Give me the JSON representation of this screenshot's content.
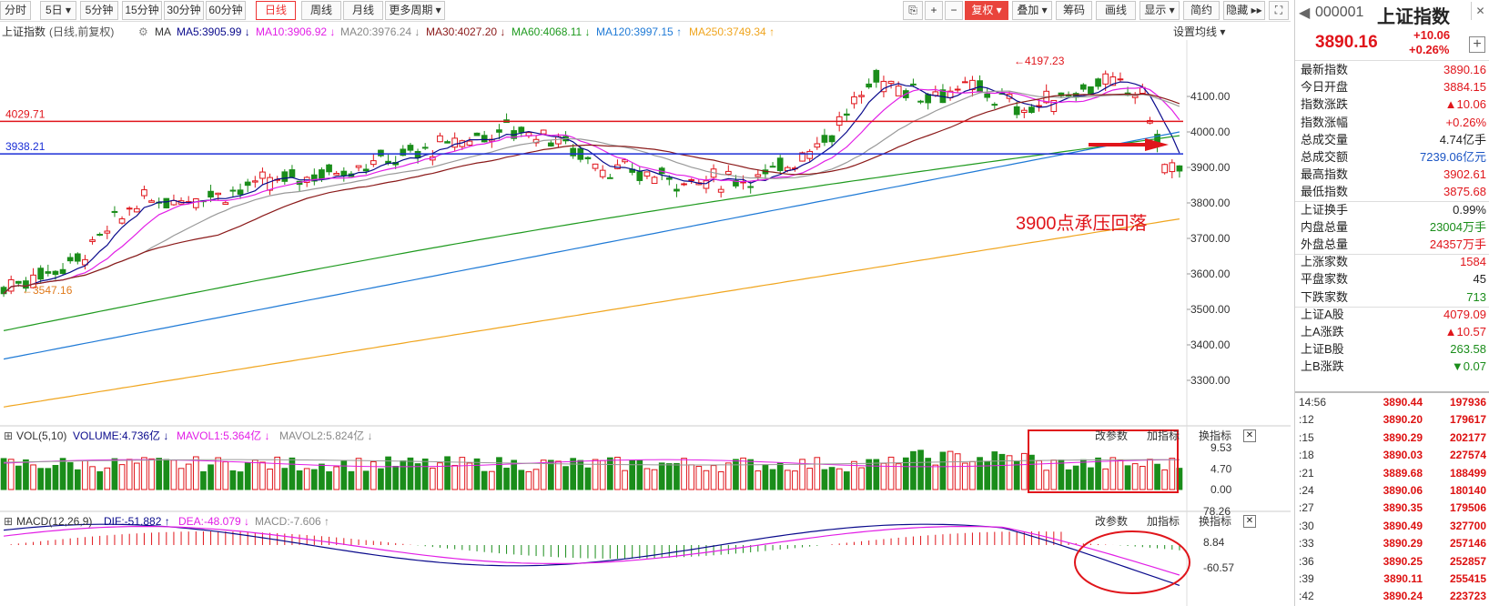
{
  "toolbar": {
    "items": [
      "分时",
      "5日 ▾",
      "5分钟",
      "15分钟",
      "30分钟",
      "60分钟",
      "日线",
      "周线",
      "月线",
      "更多周期 ▾"
    ],
    "right_items": [
      "复权 ▾",
      "叠加 ▾",
      "筹码",
      "画线",
      "显示 ▾",
      "简约",
      "隐藏 ▸▸"
    ]
  },
  "ma_header": {
    "name": "上证指数",
    "mode": "(日线,前复权)",
    "ma": "MA",
    "ma5": "MA5:3905.99 ↓",
    "ma10": "MA10:3906.92 ↓",
    "ma20": "MA20:3976.24 ↓",
    "ma30": "MA30:4027.20 ↓",
    "ma60": "MA60:4068.11 ↓",
    "ma120": "MA120:3997.15 ↑",
    "ma250": "MA250:3749.34 ↑",
    "settings": "设置均线 ▾"
  },
  "colors": {
    "ma5": "#0a0a8c",
    "ma10": "#e21ee6",
    "ma20": "#999999",
    "ma30": "#8b1a1a",
    "ma60": "#1f9a1f",
    "ma120": "#1f7ad6",
    "ma250": "#f0a51e",
    "up": "#e0151b",
    "down": "#1a8d1a"
  },
  "main_chart": {
    "y_ticks": [
      "4100.00",
      "4000.00",
      "3900.00",
      "3800.00",
      "3700.00",
      "3600.00",
      "3500.00",
      "3400.00",
      "3300.00"
    ],
    "high_label": "4197.23",
    "low_label": "3547.16",
    "hline_red": "4029.71",
    "hline_blue": "3938.21",
    "annotation": "3900点承压回落"
  },
  "vol_header": {
    "name": "VOL(5,10)",
    "volume": "VOLUME:4.736亿 ↓",
    "mavol1": "MAVOL1:5.364亿 ↓",
    "mavol2": "MAVOL2:5.824亿 ↓",
    "btn1": "改参数",
    "btn2": "加指标",
    "btn3": "换指标",
    "close": "✕"
  },
  "vol_ticks": [
    "9.53",
    "4.70",
    "0.00"
  ],
  "macd_header": {
    "name": "MACD(12,26,9)",
    "dif": "DIF:-51.882 ↑",
    "dea": "DEA:-48.079 ↓",
    "macd": "MACD:-7.606 ↑",
    "btn1": "改参数",
    "btn2": "加指标",
    "btn3": "换指标",
    "close": "✕"
  },
  "macd_ticks": [
    "78.26",
    "8.84",
    "-60.57"
  ],
  "panel": {
    "code": "000001",
    "name": "上证指数",
    "price": "3890.16",
    "chg": "+10.06",
    "pct": "+0.26%",
    "stats": [
      {
        "label": "最新指数",
        "value": "3890.16",
        "color": "red"
      },
      {
        "label": "今日开盘",
        "value": "3884.15",
        "color": "red"
      },
      {
        "label": "指数涨跌",
        "value": "▲10.06",
        "color": "red"
      },
      {
        "label": "指数涨幅",
        "value": "+0.26%",
        "color": "red"
      },
      {
        "label": "总成交量",
        "value": "4.74亿手",
        "color": "dark"
      },
      {
        "label": "总成交额",
        "value": "7239.06亿元",
        "color": "blue"
      },
      {
        "label": "最高指数",
        "value": "3902.61",
        "color": "red"
      },
      {
        "label": "最低指数",
        "value": "3875.68",
        "color": "red"
      },
      {
        "label": "上证换手",
        "value": "0.99%",
        "color": "dark"
      },
      {
        "label": "内盘总量",
        "value": "23004万手",
        "color": "green"
      },
      {
        "label": "外盘总量",
        "value": "24357万手",
        "color": "red"
      },
      {
        "label": "上涨家数",
        "value": "1584",
        "color": "red"
      },
      {
        "label": "平盘家数",
        "value": "45",
        "color": "dark"
      },
      {
        "label": "下跌家数",
        "value": "713",
        "color": "green"
      },
      {
        "label": "上证A股",
        "value": "4079.09",
        "color": "red"
      },
      {
        "label": "上A涨跌",
        "value": "▲10.57",
        "color": "red"
      },
      {
        "label": "上证B股",
        "value": "263.58",
        "color": "green"
      },
      {
        "label": "上B涨跌",
        "value": "▼0.07",
        "color": "green"
      }
    ],
    "ticks": [
      {
        "t": "14:56",
        "p": "3890.44",
        "v": "197936"
      },
      {
        "t": ":12",
        "p": "3890.20",
        "v": "179617"
      },
      {
        "t": ":15",
        "p": "3890.29",
        "v": "202177"
      },
      {
        "t": ":18",
        "p": "3890.03",
        "v": "227574"
      },
      {
        "t": ":21",
        "p": "3889.68",
        "v": "188499"
      },
      {
        "t": ":24",
        "p": "3890.06",
        "v": "180140"
      },
      {
        "t": ":27",
        "p": "3890.35",
        "v": "179506"
      },
      {
        "t": ":30",
        "p": "3890.49",
        "v": "327700"
      },
      {
        "t": ":33",
        "p": "3890.29",
        "v": "257146"
      },
      {
        "t": ":36",
        "p": "3890.25",
        "v": "252857"
      },
      {
        "t": ":39",
        "p": "3890.11",
        "v": "255415"
      },
      {
        "t": ":42",
        "p": "3890.24",
        "v": "223723"
      }
    ]
  }
}
